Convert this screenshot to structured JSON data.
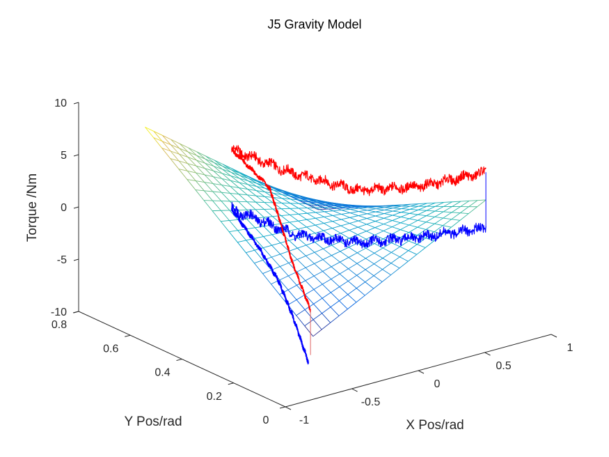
{
  "chart_data": {
    "type": "surface3d",
    "title": "J5 Gravity Model",
    "xlabel": "X Pos/rad",
    "ylabel": "Y Pos/rad",
    "zlabel": "Torque /Nm",
    "xlim": [
      -1,
      1
    ],
    "ylim": [
      0,
      0.8
    ],
    "zlim": [
      -10,
      10
    ],
    "xticks": [
      {
        "v": -1,
        "label": "-1"
      },
      {
        "v": -0.5,
        "label": "-0.5"
      },
      {
        "v": 0,
        "label": "0"
      },
      {
        "v": 0.5,
        "label": "0.5"
      },
      {
        "v": 1,
        "label": "1"
      }
    ],
    "yticks": [
      {
        "v": 0,
        "label": "0"
      },
      {
        "v": 0.2,
        "label": "0.2"
      },
      {
        "v": 0.4,
        "label": "0.4"
      },
      {
        "v": 0.6,
        "label": "0.6"
      },
      {
        "v": 0.8,
        "label": "0.8"
      }
    ],
    "zticks": [
      {
        "v": -10,
        "label": "-10"
      },
      {
        "v": -5,
        "label": "-5"
      },
      {
        "v": 0,
        "label": "0"
      },
      {
        "v": 5,
        "label": "5"
      },
      {
        "v": 10,
        "label": "10"
      }
    ],
    "grid": false,
    "surface": {
      "colormap": "parula",
      "x_range": [
        -0.5,
        0.8
      ],
      "y_range": [
        0.15,
        0.8
      ],
      "grid_lines": [
        21,
        21
      ],
      "corner_z": {
        "xmin_ymin": -6.7,
        "xmin_ymax": 5.9,
        "xmax_ymin": 1.85,
        "xmax_ymax": -6.5
      }
    },
    "series": [
      {
        "color": "#ff0000",
        "noise": 0.45,
        "width": 1.2,
        "points": [
          [
            -0.5,
            0.465,
            7.6
          ],
          [
            -0.175,
            0.386,
            5.0
          ],
          [
            0.15,
            0.3075,
            3.2
          ],
          [
            0.475,
            0.229,
            3.4
          ],
          [
            0.8,
            0.15,
            4.5
          ]
        ]
      },
      {
        "color": "#0000ff",
        "noise": 0.45,
        "width": 1.2,
        "points": [
          [
            -0.5,
            0.465,
            1.9
          ],
          [
            -0.175,
            0.386,
            -0.8
          ],
          [
            0.15,
            0.3075,
            -1.8
          ],
          [
            0.475,
            0.229,
            -1.5
          ],
          [
            0.8,
            0.15,
            -0.8
          ]
        ]
      },
      {
        "color": "#ff0000",
        "noise": 0.18,
        "width": 1.6,
        "points": [
          [
            -0.5,
            0.465,
            7.6
          ],
          [
            -0.5,
            0.319,
            5.6
          ],
          [
            -0.5,
            0.284,
            3.3
          ],
          [
            -0.5,
            0.23,
            -0.56
          ],
          [
            -0.5,
            0.16,
            -4.3
          ]
        ]
      },
      {
        "color": "#0000ff",
        "noise": 0.2,
        "width": 1.6,
        "points": [
          [
            -0.5,
            0.465,
            1.9
          ],
          [
            -0.5,
            0.357,
            -0.67
          ],
          [
            -0.5,
            0.284,
            -2.9
          ],
          [
            -0.5,
            0.23,
            -5.6
          ],
          [
            -0.5,
            0.168,
            -9.4
          ]
        ]
      },
      {
        "color": "#e06464",
        "noise": 0,
        "width": 1,
        "points": [
          [
            -0.5,
            0.16,
            -4.3
          ],
          [
            -0.5,
            0.16,
            -8.6
          ]
        ]
      },
      {
        "color": "#0000ff",
        "noise": 0,
        "width": 1,
        "points": [
          [
            0.8,
            0.15,
            4.5
          ],
          [
            0.8,
            0.15,
            -0.8
          ]
        ]
      }
    ]
  }
}
